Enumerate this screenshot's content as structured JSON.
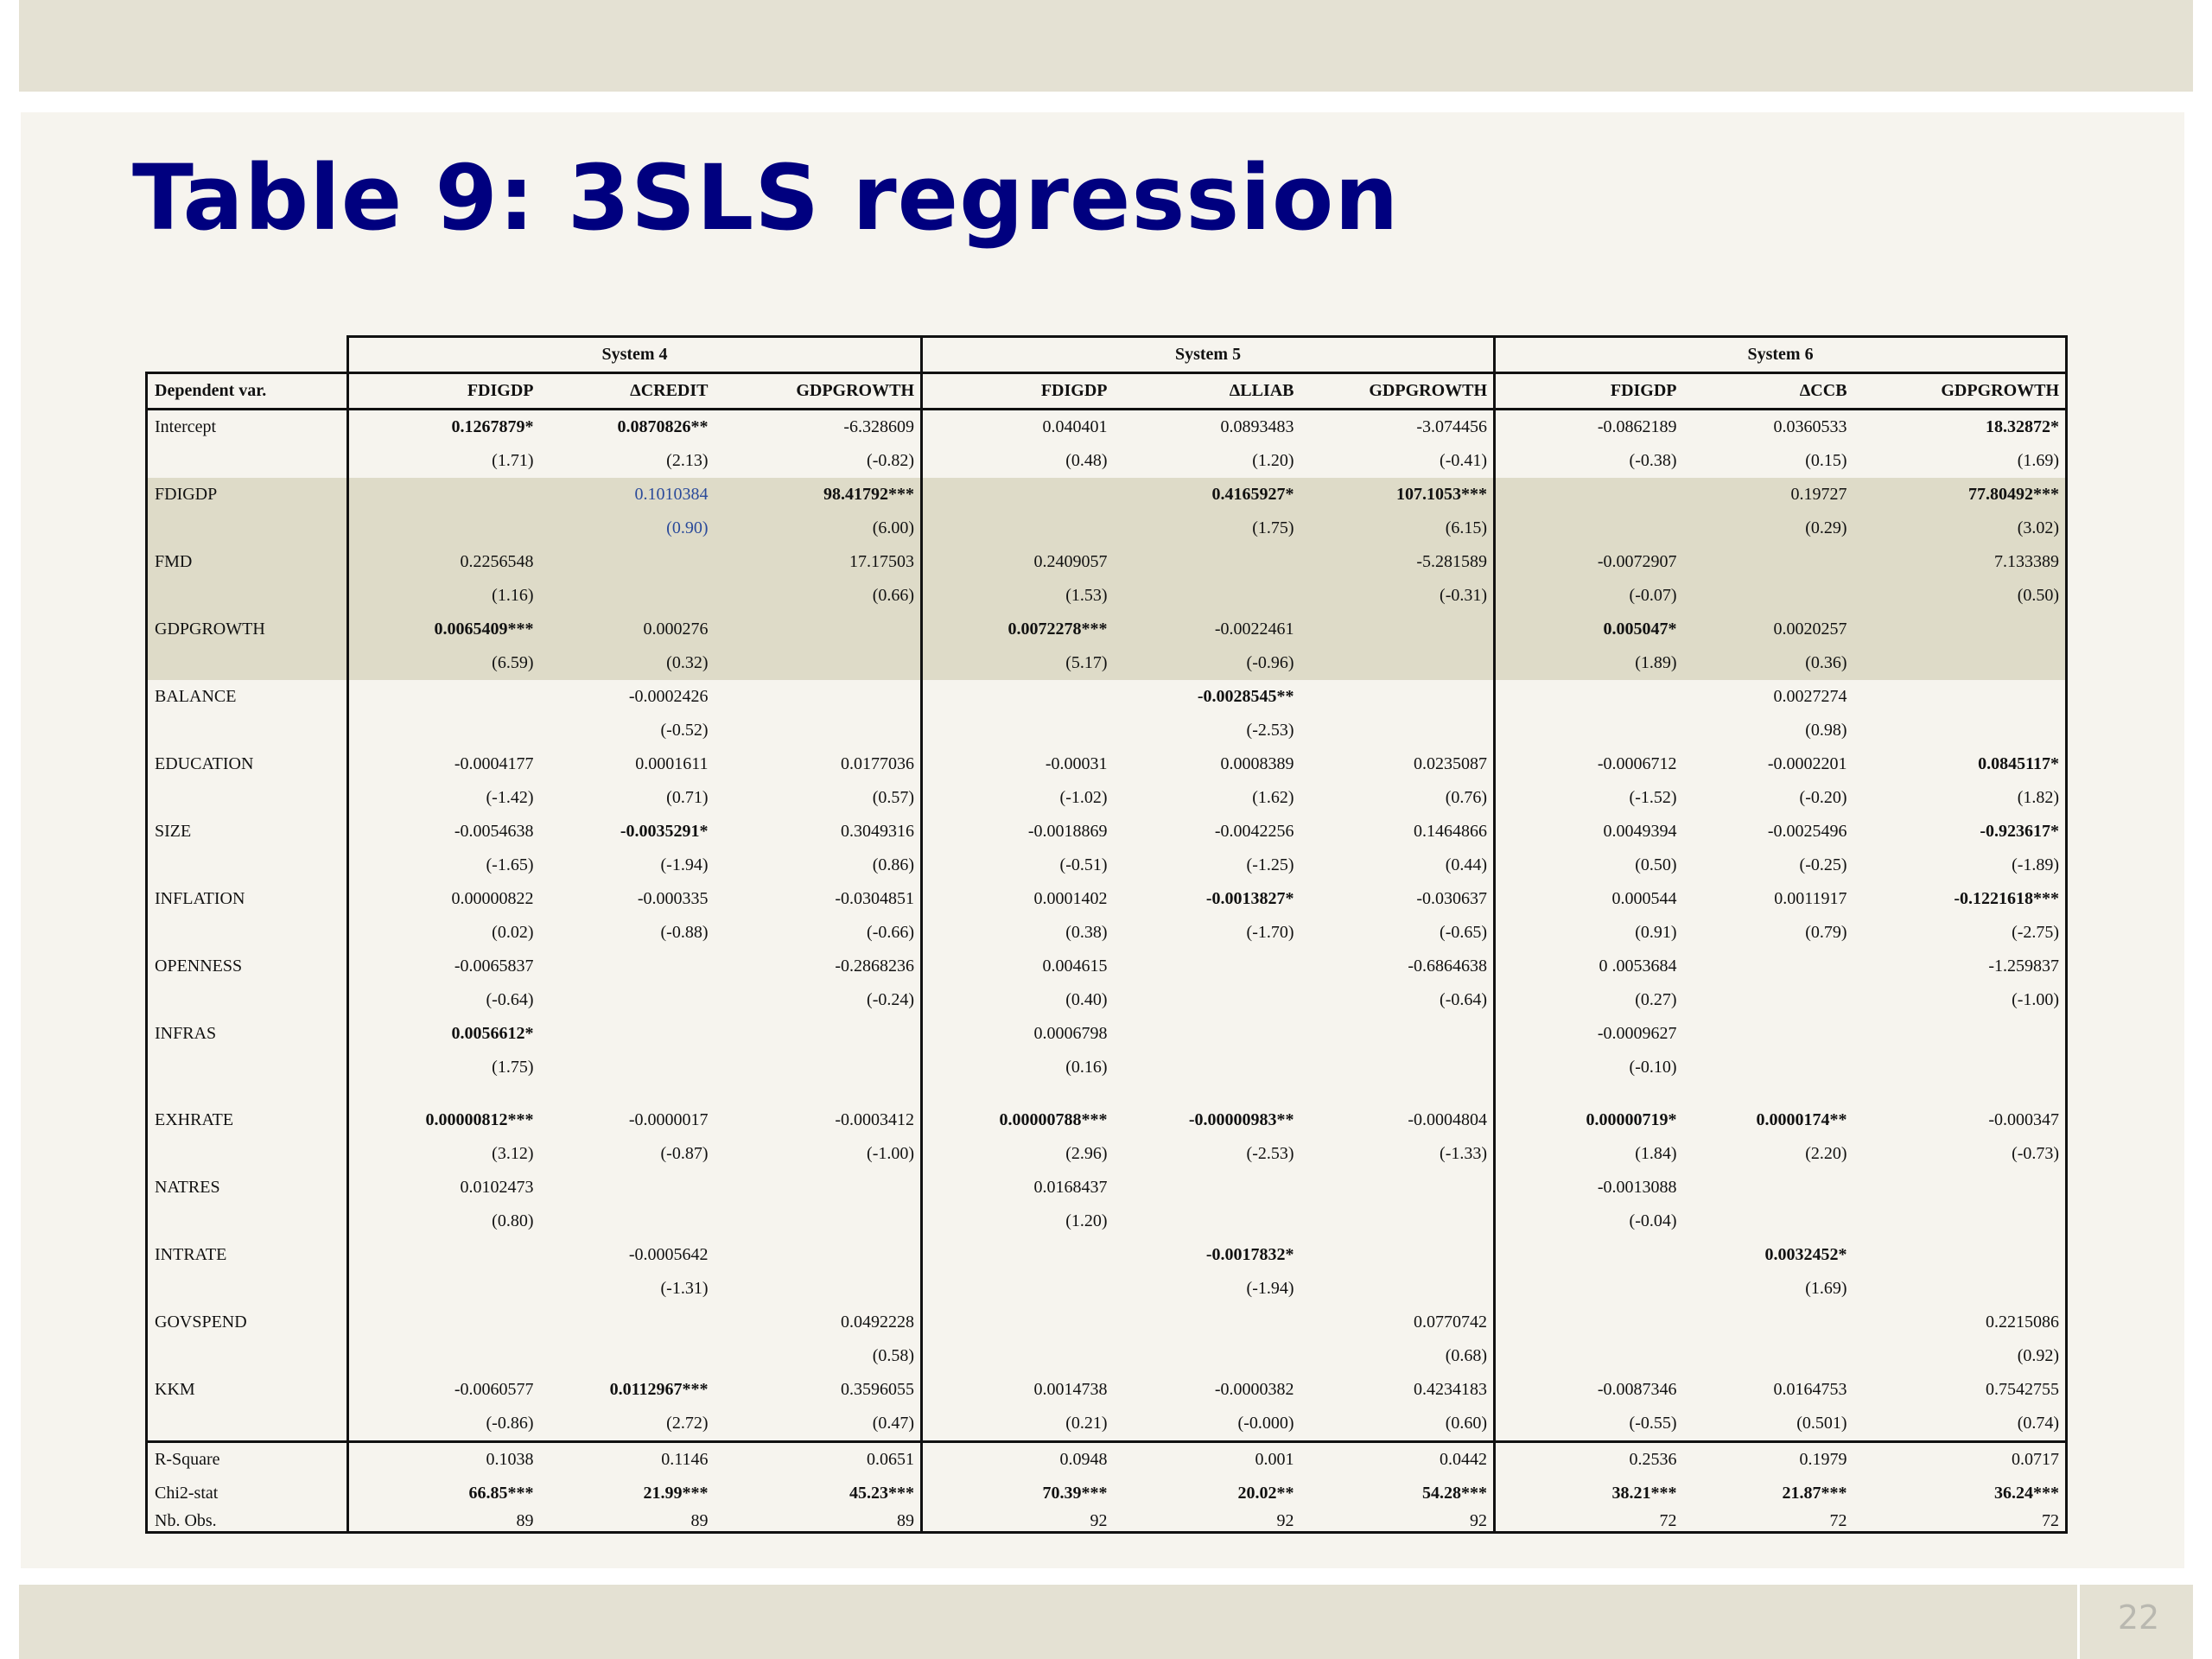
{
  "slide": {
    "title": "Table 9: 3SLS regression",
    "page_number": "22"
  },
  "table": {
    "systems": [
      "System 4",
      "System 5",
      "System 6"
    ],
    "dependent_label": "Dependent var.",
    "columns": [
      "FDIGDP",
      "ΔCREDIT",
      "GDPGROWTH",
      "FDIGDP",
      "ΔLLIAB",
      "GDPGROWTH",
      "FDIGDP",
      "ΔCCB",
      "GDPGROWTH"
    ],
    "rows": [
      {
        "label": "Intercept",
        "shaded": false,
        "coef": [
          "0.1267879*",
          "0.0870826**",
          "-6.328609",
          "0.040401",
          "0.0893483",
          "-3.074456",
          "-0.0862189",
          "0.0360533",
          "18.32872*"
        ],
        "t": [
          "(1.71)",
          "(2.13)",
          "(-0.82)",
          "(0.48)",
          "(1.20)",
          "(-0.41)",
          "(-0.38)",
          "(0.15)",
          "(1.69)"
        ],
        "bold": [
          true,
          true,
          false,
          false,
          false,
          false,
          false,
          false,
          true
        ]
      },
      {
        "label": "FDIGDP",
        "shaded": true,
        "coef": [
          "",
          "0.1010384",
          "98.41792***",
          "",
          "0.4165927*",
          "107.1053***",
          "",
          "0.19727",
          "77.80492***"
        ],
        "t": [
          "",
          "(0.90)",
          "(6.00)",
          "",
          "(1.75)",
          "(6.15)",
          "",
          "(0.29)",
          "(3.02)"
        ],
        "bold": [
          false,
          false,
          true,
          false,
          true,
          true,
          false,
          false,
          true
        ],
        "blue": [
          false,
          true,
          false,
          false,
          false,
          false,
          false,
          false,
          false
        ]
      },
      {
        "label": "FMD",
        "shaded": true,
        "coef": [
          "0.2256548",
          "",
          "17.17503",
          "0.2409057",
          "",
          "-5.281589",
          "-0.0072907",
          "",
          "7.133389"
        ],
        "t": [
          "(1.16)",
          "",
          "(0.66)",
          "(1.53)",
          "",
          "(-0.31)",
          "(-0.07)",
          "",
          "(0.50)"
        ],
        "bold": [
          false,
          false,
          false,
          false,
          false,
          false,
          false,
          false,
          false
        ]
      },
      {
        "label": "GDPGROWTH",
        "shaded": true,
        "coef": [
          "0.0065409***",
          "0.000276",
          "",
          "0.0072278***",
          "-0.0022461",
          "",
          "0.005047*",
          "0.0020257",
          ""
        ],
        "t": [
          "(6.59)",
          "(0.32)",
          "",
          "(5.17)",
          "(-0.96)",
          "",
          "(1.89)",
          "(0.36)",
          ""
        ],
        "bold": [
          true,
          false,
          false,
          true,
          false,
          false,
          true,
          false,
          false
        ]
      },
      {
        "label": "BALANCE",
        "shaded": false,
        "coef": [
          "",
          "-0.0002426",
          "",
          "",
          "-0.0028545**",
          "",
          "",
          "0.0027274",
          ""
        ],
        "t": [
          "",
          "(-0.52)",
          "",
          "",
          "(-2.53)",
          "",
          "",
          "(0.98)",
          ""
        ],
        "bold": [
          false,
          false,
          false,
          false,
          true,
          false,
          false,
          false,
          false
        ]
      },
      {
        "label": "EDUCATION",
        "shaded": false,
        "coef": [
          "-0.0004177",
          "0.0001611",
          "0.0177036",
          "-0.00031",
          "0.0008389",
          "0.0235087",
          "-0.0006712",
          "-0.0002201",
          "0.0845117*"
        ],
        "t": [
          "(-1.42)",
          "(0.71)",
          "(0.57)",
          "(-1.02)",
          "(1.62)",
          "(0.76)",
          "(-1.52)",
          "(-0.20)",
          "(1.82)"
        ],
        "bold": [
          false,
          false,
          false,
          false,
          false,
          false,
          false,
          false,
          true
        ]
      },
      {
        "label": "SIZE",
        "shaded": false,
        "coef": [
          "-0.0054638",
          "-0.0035291*",
          "0.3049316",
          "-0.0018869",
          "-0.0042256",
          "0.1464866",
          "0.0049394",
          "-0.0025496",
          "-0.923617*"
        ],
        "t": [
          "(-1.65)",
          "(-1.94)",
          "(0.86)",
          "(-0.51)",
          "(-1.25)",
          "(0.44)",
          "(0.50)",
          "(-0.25)",
          "(-1.89)"
        ],
        "bold": [
          false,
          true,
          false,
          false,
          false,
          false,
          false,
          false,
          true
        ]
      },
      {
        "label": "INFLATION",
        "shaded": false,
        "coef": [
          "0.00000822",
          "-0.000335",
          "-0.0304851",
          "0.0001402",
          "-0.0013827*",
          "-0.030637",
          "0.000544",
          "0.0011917",
          "-0.1221618***"
        ],
        "t": [
          "(0.02)",
          "(-0.88)",
          "(-0.66)",
          "(0.38)",
          "(-1.70)",
          "(-0.65)",
          "(0.91)",
          "(0.79)",
          "(-2.75)"
        ],
        "bold": [
          false,
          false,
          false,
          false,
          true,
          false,
          false,
          false,
          true
        ]
      },
      {
        "label": "OPENNESS",
        "shaded": false,
        "coef": [
          "-0.0065837",
          "",
          "-0.2868236",
          "0.004615",
          "",
          "-0.6864638",
          "0 .0053684",
          "",
          "-1.259837"
        ],
        "t": [
          "(-0.64)",
          "",
          "(-0.24)",
          "(0.40)",
          "",
          "(-0.64)",
          "(0.27)",
          "",
          "(-1.00)"
        ],
        "bold": [
          false,
          false,
          false,
          false,
          false,
          false,
          false,
          false,
          false
        ]
      },
      {
        "label": "INFRAS",
        "shaded": false,
        "coef": [
          "0.0056612*",
          "",
          "",
          "0.0006798",
          "",
          "",
          "-0.0009627",
          "",
          ""
        ],
        "t": [
          "(1.75)",
          "",
          "",
          "(0.16)",
          "",
          "",
          "(-0.10)",
          "",
          ""
        ],
        "bold": [
          true,
          false,
          false,
          false,
          false,
          false,
          false,
          false,
          false
        ],
        "gap_after": true
      },
      {
        "label": "EXHRATE",
        "shaded": false,
        "coef": [
          "0.00000812***",
          "-0.0000017",
          "-0.0003412",
          "0.00000788***",
          "-0.00000983**",
          "-0.0004804",
          "0.00000719*",
          "0.0000174**",
          "-0.000347"
        ],
        "t": [
          "(3.12)",
          "(-0.87)",
          "(-1.00)",
          "(2.96)",
          "(-2.53)",
          "(-1.33)",
          "(1.84)",
          "(2.20)",
          "(-0.73)"
        ],
        "bold": [
          true,
          false,
          false,
          true,
          true,
          false,
          true,
          true,
          false
        ]
      },
      {
        "label": "NATRES",
        "shaded": false,
        "coef": [
          "0.0102473",
          "",
          "",
          "0.0168437",
          "",
          "",
          "-0.0013088",
          "",
          ""
        ],
        "t": [
          "(0.80)",
          "",
          "",
          "(1.20)",
          "",
          "",
          "(-0.04)",
          "",
          ""
        ],
        "bold": [
          false,
          false,
          false,
          false,
          false,
          false,
          false,
          false,
          false
        ]
      },
      {
        "label": "INTRATE",
        "shaded": false,
        "coef": [
          "",
          "-0.0005642",
          "",
          "",
          "-0.0017832*",
          "",
          "",
          "0.0032452*",
          ""
        ],
        "t": [
          "",
          "(-1.31)",
          "",
          "",
          "(-1.94)",
          "",
          "",
          "(1.69)",
          ""
        ],
        "bold": [
          false,
          false,
          false,
          false,
          true,
          false,
          false,
          true,
          false
        ]
      },
      {
        "label": "GOVSPEND",
        "shaded": false,
        "coef": [
          "",
          "",
          "0.0492228",
          "",
          "",
          "0.0770742",
          "",
          "",
          "0.2215086"
        ],
        "t": [
          "",
          "",
          "(0.58)",
          "",
          "",
          "(0.68)",
          "",
          "",
          "(0.92)"
        ],
        "bold": [
          false,
          false,
          false,
          false,
          false,
          false,
          false,
          false,
          false
        ]
      },
      {
        "label": "KKM",
        "shaded": false,
        "coef": [
          "-0.0060577",
          "0.0112967***",
          "0.3596055",
          "0.0014738",
          "-0.0000382",
          "0.4234183",
          "-0.0087346",
          "0.0164753",
          "0.7542755"
        ],
        "t": [
          "(-0.86)",
          "(2.72)",
          "(0.47)",
          "(0.21)",
          "(-0.000)",
          "(0.60)",
          "(-0.55)",
          "(0.501)",
          "(0.74)"
        ],
        "bold": [
          false,
          true,
          false,
          false,
          false,
          false,
          false,
          false,
          false
        ]
      }
    ],
    "stats": [
      {
        "label": "R-Square",
        "values": [
          "0.1038",
          "0.1146",
          "0.0651",
          "0.0948",
          "0.001",
          "0.0442",
          "0.2536",
          "0.1979",
          "0.0717"
        ],
        "bold": false
      },
      {
        "label": "Chi2-stat",
        "values": [
          "66.85***",
          "21.99***",
          "45.23***",
          "70.39***",
          "20.02**",
          "54.28***",
          "38.21***",
          "21.87***",
          "36.24***"
        ],
        "bold": true
      },
      {
        "label": "Nb. Obs.",
        "values": [
          "89",
          "89",
          "89",
          "92",
          "92",
          "92",
          "72",
          "72",
          "72"
        ],
        "bold": false
      }
    ]
  }
}
